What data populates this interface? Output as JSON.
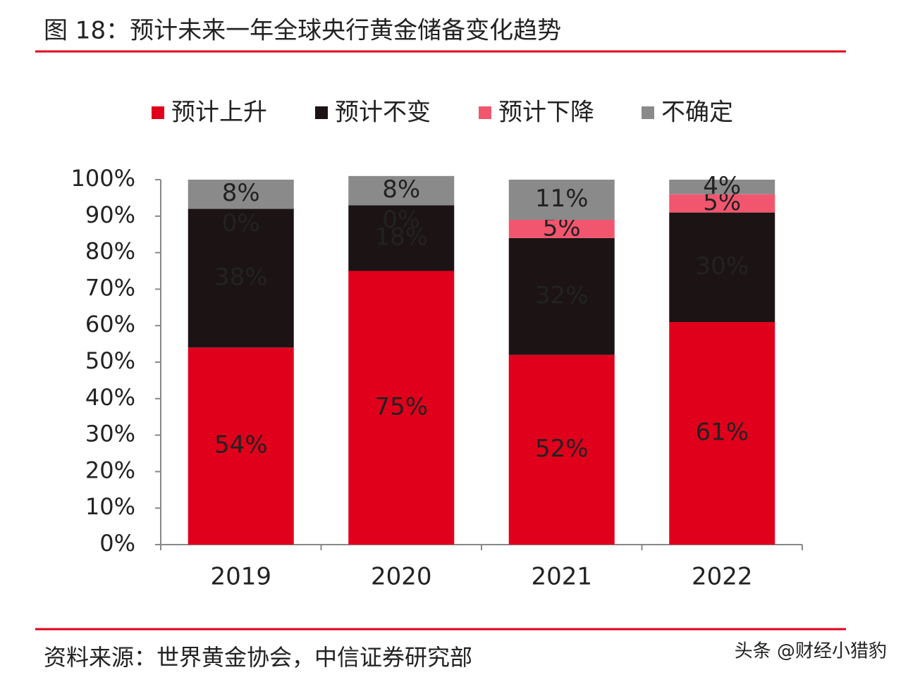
{
  "chart_data": {
    "type": "stacked_bar",
    "title": "图 18：预计未来一年全球央行黄金储备变化趋势",
    "categories": [
      "2019",
      "2020",
      "2021",
      "2022"
    ],
    "series": [
      {
        "name": "预计上升",
        "color": "#e0001b",
        "values": [
          54,
          75,
          52,
          61
        ],
        "value_labels": [
          "54%",
          "75%",
          "52%",
          "61%"
        ]
      },
      {
        "name": "预计不变",
        "color": "#1c1414",
        "values": [
          38,
          18,
          32,
          30
        ],
        "value_labels": [
          "38%",
          "18%",
          "32%",
          "30%"
        ]
      },
      {
        "name": "预计下降",
        "color": "#f2566e",
        "values": [
          0,
          0,
          5,
          5
        ],
        "value_labels": [
          "0%",
          "0%",
          "5%",
          "5%"
        ]
      },
      {
        "name": "不确定",
        "color": "#8a8a8a",
        "values": [
          8,
          8,
          11,
          4
        ],
        "value_labels": [
          "8%",
          "8%",
          "11%",
          "4%"
        ]
      }
    ],
    "ylim": [
      0,
      100
    ],
    "yticks": [
      {
        "value": 0,
        "label": "0%"
      },
      {
        "value": 10,
        "label": "10%"
      },
      {
        "value": 20,
        "label": "20%"
      },
      {
        "value": 30,
        "label": "30%"
      },
      {
        "value": 40,
        "label": "40%"
      },
      {
        "value": 50,
        "label": "50%"
      },
      {
        "value": 60,
        "label": "60%"
      },
      {
        "value": 70,
        "label": "70%"
      },
      {
        "value": 80,
        "label": "80%"
      },
      {
        "value": 90,
        "label": "90%"
      },
      {
        "value": 100,
        "label": "100%"
      }
    ],
    "legend": "top",
    "source": "资料来源：世界黄金协会，中信证券研究部",
    "watermark": "头条 @财经小猎豹"
  }
}
